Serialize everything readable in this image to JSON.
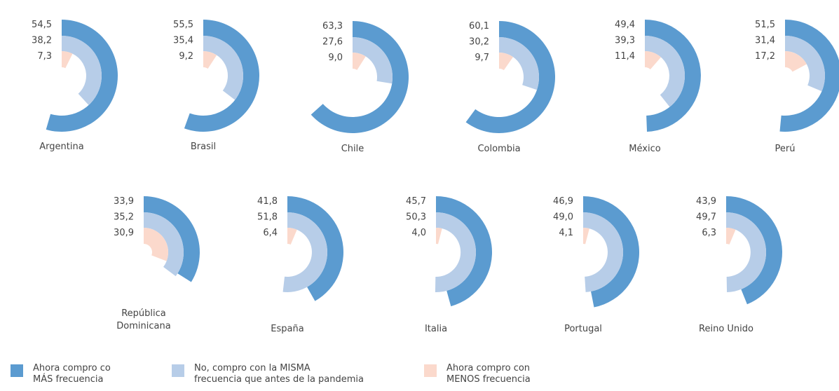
{
  "chart_data": {
    "type": "radial_bar",
    "categories": [
      "Argentina",
      "Brasil",
      "Chile",
      "Colombia",
      "México",
      "Perú",
      "República\nDominicana",
      "España",
      "Italia",
      "Portugal",
      "Reino Unido"
    ],
    "value_max": 100,
    "series": [
      {
        "name": "Ahora compro co\nMÁS frecuencia",
        "color": "#5b9bd0",
        "values": [
          54.5,
          55.5,
          63.3,
          60.1,
          49.4,
          51.5,
          33.9,
          41.8,
          45.7,
          46.9,
          43.9
        ],
        "value_labels": [
          "54,5",
          "55,5",
          "63,3",
          "60,1",
          "49,4",
          "51,5",
          "33,9",
          "41,8",
          "45,7",
          "46,9",
          "43,9"
        ]
      },
      {
        "name": "No, compro con la MISMA\nfrecuencia que antes de la pandemia",
        "color": "#b7cde8",
        "values": [
          38.2,
          35.4,
          27.6,
          30.2,
          39.3,
          31.4,
          35.2,
          51.8,
          50.3,
          49.0,
          49.7
        ],
        "value_labels": [
          "38,2",
          "35,4",
          "27,6",
          "30,2",
          "39,3",
          "31,4",
          "35,2",
          "51,8",
          "50,3",
          "49,0",
          "49,7"
        ]
      },
      {
        "name": "Ahora compro con\nMENOS frecuencia",
        "color": "#fbd9cc",
        "values": [
          7.3,
          9.2,
          9.0,
          9.7,
          11.4,
          17.2,
          30.9,
          6.4,
          4.0,
          4.1,
          6.3
        ],
        "value_labels": [
          "7,3",
          "9,2",
          "9,0",
          "9,7",
          "11,4",
          "17,2",
          "30,9",
          "6,4",
          "4,0",
          "4,1",
          "6,3"
        ]
      }
    ]
  }
}
